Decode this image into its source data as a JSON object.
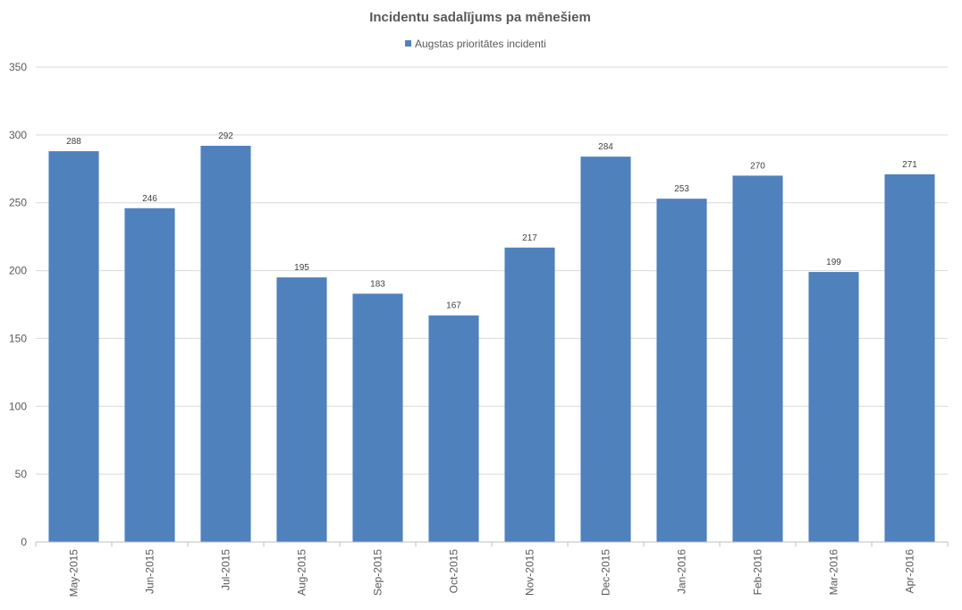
{
  "chart_data": {
    "type": "bar",
    "title": "Incidentu sadalījums pa mēnešiem",
    "xlabel": "",
    "ylabel": "",
    "categories": [
      "May-2015",
      "Jun-2015",
      "Jul-2015",
      "Aug-2015",
      "Sep-2015",
      "Oct-2015",
      "Nov-2015",
      "Dec-2015",
      "Jan-2016",
      "Feb-2016",
      "Mar-2016",
      "Apr-2016"
    ],
    "series": [
      {
        "name": "Augstas prioritātes incidenti",
        "color": "#4f81bd",
        "values": [
          288,
          246,
          292,
          195,
          183,
          167,
          217,
          284,
          253,
          270,
          199,
          271
        ]
      }
    ],
    "ylim": [
      0,
      350
    ],
    "yticks": [
      "0",
      "50",
      "100",
      "150",
      "200",
      "250",
      "300",
      "350"
    ],
    "grid": true,
    "legend_position": "top",
    "data_labels": true
  }
}
